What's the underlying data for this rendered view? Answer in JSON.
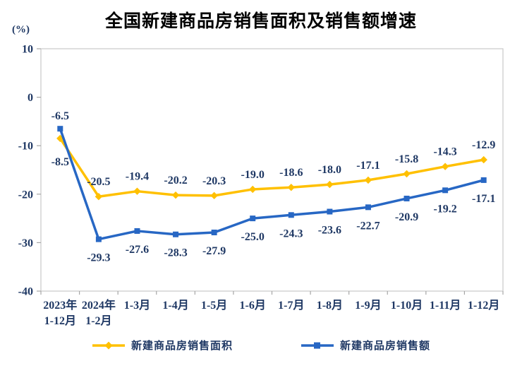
{
  "title": "全国新建商品房销售面积及销售额增速",
  "y_axis_unit": "(%)",
  "colors": {
    "text": "#1F3864",
    "title": "#000000",
    "axis_border": "#C9C9C9",
    "tick": "#A6A6A6",
    "background": "#FFFFFF",
    "series_area": "#FFC000",
    "series_amount": "#2767C4"
  },
  "chart_data": {
    "type": "line",
    "title": "全国新建商品房销售面积及销售额增速",
    "ylabel": "(%)",
    "ylim": [
      -40,
      10
    ],
    "y_ticks": [
      10,
      0,
      -10,
      -20,
      -30,
      -40
    ],
    "grid": false,
    "legend_position": "bottom",
    "categories": [
      "2023年\n1-12月",
      "2024年\n1-2月",
      "1-3月",
      "1-4月",
      "1-5月",
      "1-6月",
      "1-7月",
      "1-8月",
      "1-9月",
      "1-10月",
      "1-11月",
      "1-12月"
    ],
    "series": [
      {
        "name": "新建商品房销售面积",
        "marker": "diamond",
        "color": "#FFC000",
        "values": [
          -8.5,
          -20.5,
          -19.4,
          -20.2,
          -20.3,
          -19.0,
          -18.6,
          -18.0,
          -17.1,
          -15.8,
          -14.3,
          -12.9
        ],
        "labels": [
          "-8.5",
          "-20.5",
          "-19.4",
          "-20.2",
          "-20.3",
          "-19.0",
          "-18.6",
          "-18.0",
          "-17.1",
          "-15.8",
          "-14.3",
          "-12.9"
        ]
      },
      {
        "name": "新建商品房销售额",
        "marker": "square",
        "color": "#2767C4",
        "values": [
          -6.5,
          -29.3,
          -27.6,
          -28.3,
          -27.9,
          -25.0,
          -24.3,
          -23.6,
          -22.7,
          -20.9,
          -19.2,
          -17.1
        ],
        "labels": [
          "-6.5",
          "-29.3",
          "-27.6",
          "-28.3",
          "-27.9",
          "-25.0",
          "-24.3",
          "-23.6",
          "-22.7",
          "-20.9",
          "-19.2",
          "-17.1"
        ]
      }
    ]
  }
}
